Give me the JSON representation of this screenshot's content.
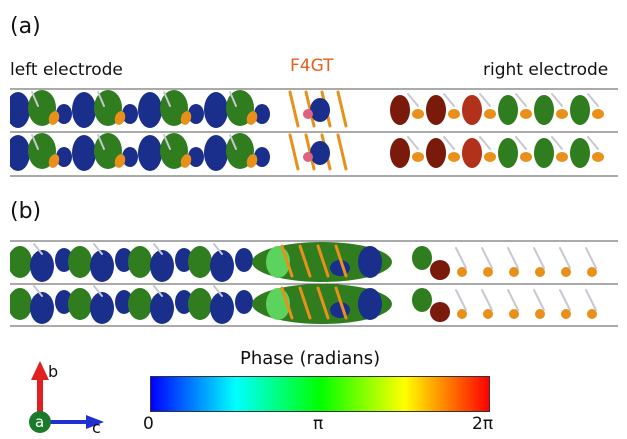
{
  "panels": {
    "a": {
      "label": "(a)",
      "left_label": "left electrode",
      "center_label": "F4GT",
      "right_label": "right electrode"
    },
    "b": {
      "label": "(b)"
    }
  },
  "axes_indicator": {
    "b": "b",
    "a": "a",
    "c": "c"
  },
  "colorbar": {
    "title": "Phase (radians)",
    "ticks": [
      "0",
      "π",
      "2π"
    ],
    "stops": [
      "#0000ff",
      "#00ff00",
      "#ff0000"
    ]
  },
  "colors": {
    "blue": "#1a2e8c",
    "green": "#2f7d1f",
    "orange": "#e8901a",
    "maroon": "#7a1a0a",
    "ruby": "#b2311a",
    "lightgreen": "#5cd35c",
    "atom": "#c8c8d2"
  }
}
